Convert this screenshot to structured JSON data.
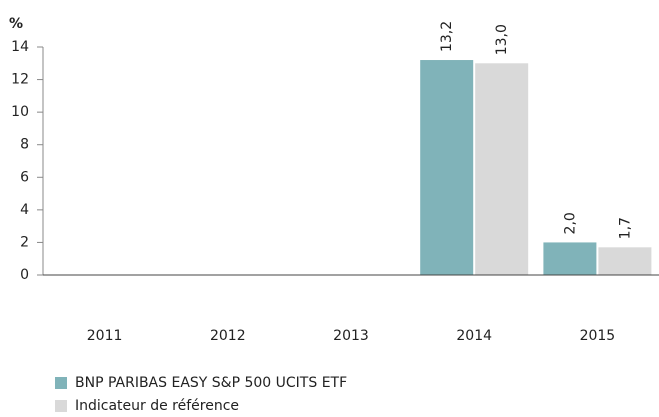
{
  "chart_data": {
    "type": "bar",
    "y_label": "%",
    "categories": [
      "2011",
      "2012",
      "2013",
      "2014",
      "2015"
    ],
    "series": [
      {
        "name": "BNP PARIBAS EASY S&P 500 UCITS ETF",
        "color": "#80b3b9",
        "values": [
          null,
          null,
          null,
          13.2,
          2.0
        ],
        "value_labels": [
          null,
          null,
          null,
          "13,2",
          "2,0"
        ]
      },
      {
        "name": "Indicateur de référence",
        "color": "#d9d9d9",
        "values": [
          null,
          null,
          null,
          13.0,
          1.7
        ],
        "value_labels": [
          null,
          null,
          null,
          "13,0",
          "1,7"
        ]
      }
    ],
    "ylim": [
      0,
      14
    ],
    "yticks": [
      0,
      2,
      4,
      6,
      8,
      10,
      12,
      14
    ],
    "grid": false
  }
}
